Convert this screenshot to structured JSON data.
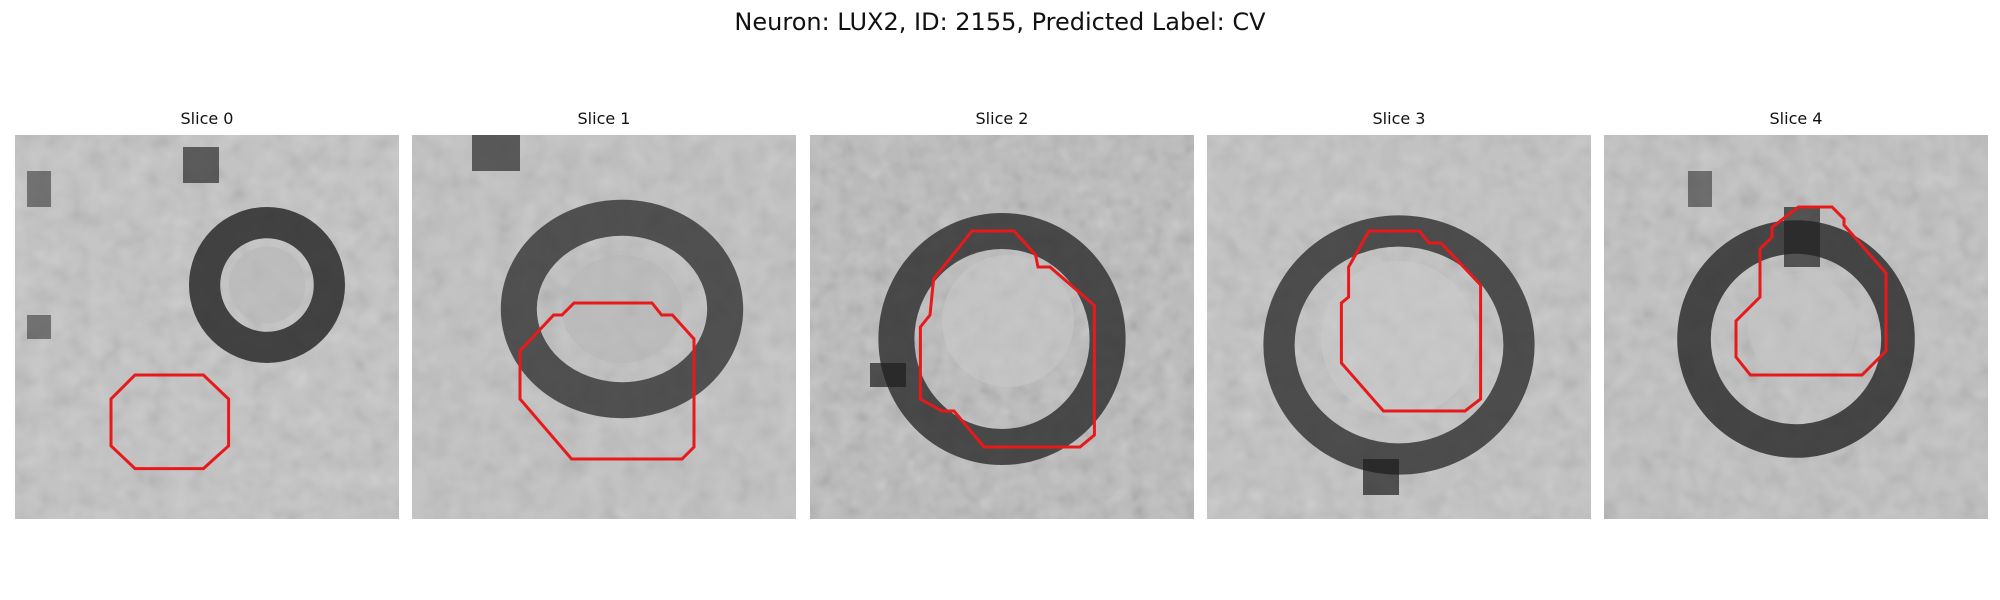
{
  "figure": {
    "title": "Neuron: LUX2, ID: 2155, Predicted Label: CV"
  },
  "colors": {
    "outline": "#e8191b",
    "background": "#ffffff"
  },
  "panels": [
    {
      "title": "Slice 0"
    },
    {
      "title": "Slice 1"
    },
    {
      "title": "Slice 2"
    },
    {
      "title": "Slice 3"
    },
    {
      "title": "Slice 4"
    }
  ]
}
